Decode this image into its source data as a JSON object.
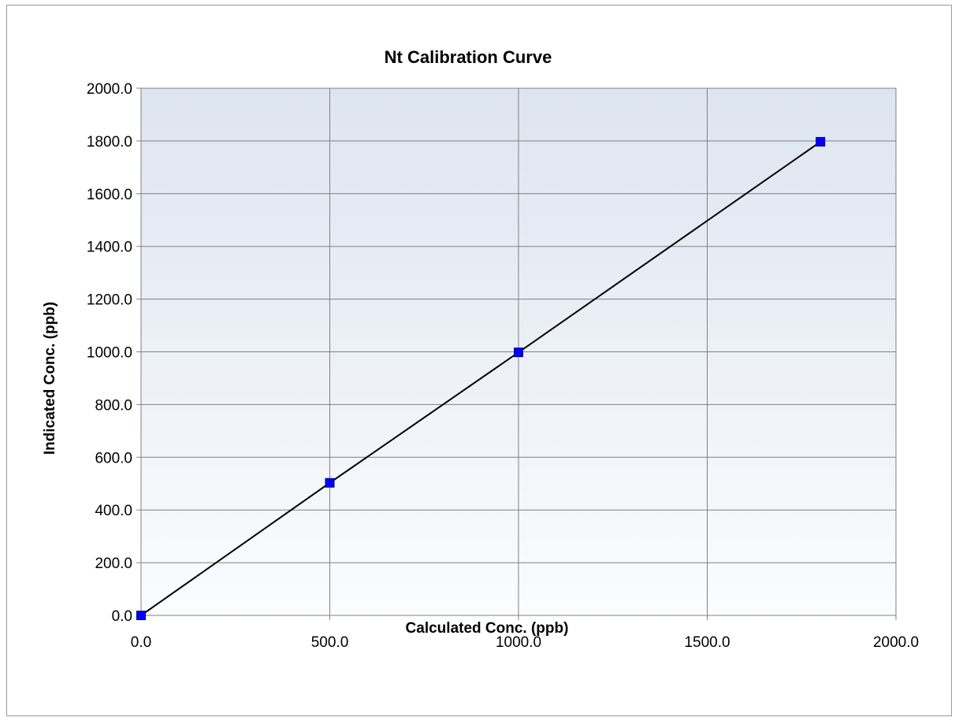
{
  "chart_data": {
    "type": "scatter",
    "title": "Nt Calibration Curve",
    "xlabel": "Calculated Conc. (ppb)",
    "ylabel": "Indicated Conc. (ppb)",
    "xlim": [
      0,
      2000
    ],
    "ylim": [
      0,
      2000
    ],
    "x_ticks": [
      0,
      500,
      1000,
      1500,
      2000
    ],
    "y_ticks": [
      0,
      200,
      400,
      600,
      800,
      1000,
      1200,
      1400,
      1600,
      1800,
      2000
    ],
    "x_tick_labels": [
      "0.0",
      "500.0",
      "1000.0",
      "1500.0",
      "2000.0"
    ],
    "y_tick_labels": [
      "0.0",
      "200.0",
      "400.0",
      "600.0",
      "800.0",
      "1000.0",
      "1200.0",
      "1400.0",
      "1600.0",
      "1800.0",
      "2000.0"
    ],
    "grid": true,
    "legend": "none",
    "series": [
      {
        "x": [
          0,
          500,
          1000,
          1800
        ],
        "y": [
          0,
          503,
          998,
          1797
        ],
        "marker": "square",
        "marker_color": "#0000ff",
        "line_color": "#000000"
      }
    ],
    "background_gradient": [
      "#dde5f0",
      "#fbfcfe"
    ],
    "grid_color": "#808080"
  }
}
